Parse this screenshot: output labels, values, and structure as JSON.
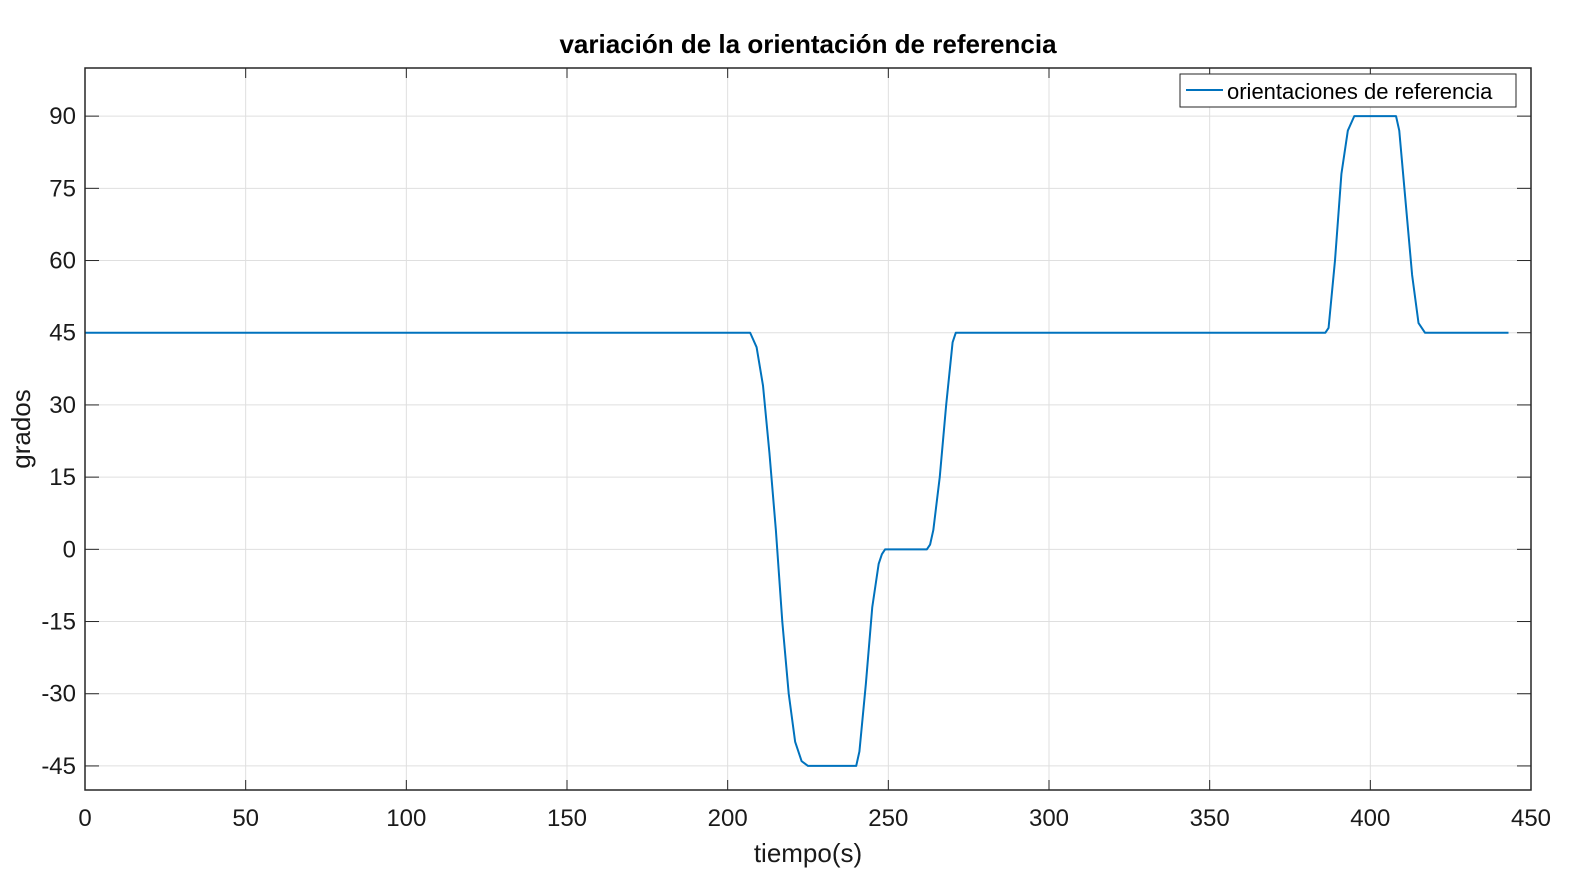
{
  "chart_data": {
    "type": "line",
    "title": "variación de la orientación de referencia",
    "xlabel": "tiempo(s)",
    "ylabel": "grados",
    "xlim": [
      0,
      450
    ],
    "ylim": [
      -50,
      100
    ],
    "x_ticks": [
      0,
      50,
      100,
      150,
      200,
      250,
      300,
      350,
      400,
      450
    ],
    "y_ticks": [
      -45,
      -30,
      -15,
      0,
      15,
      30,
      45,
      60,
      75,
      90
    ],
    "grid": true,
    "legend_position": "top-right",
    "series": [
      {
        "name": "orientaciones de referencia",
        "color": "#0072BD",
        "x": [
          0,
          207,
          209,
          211,
          213,
          215,
          217,
          219,
          221,
          223,
          225,
          240,
          241,
          243,
          245,
          247,
          248,
          249,
          250,
          262,
          263,
          264,
          266,
          268,
          270,
          271,
          386,
          387,
          389,
          391,
          393,
          395,
          408,
          409,
          411,
          413,
          415,
          417,
          443
        ],
        "y": [
          45,
          45,
          42,
          34,
          20,
          4,
          -15,
          -30,
          -40,
          -44,
          -45,
          -45,
          -42,
          -28,
          -12,
          -3,
          -1,
          0,
          0,
          0,
          1,
          4,
          15,
          30,
          43,
          45,
          45,
          46,
          60,
          78,
          87,
          90,
          90,
          87,
          72,
          57,
          47,
          45,
          45
        ]
      }
    ]
  }
}
